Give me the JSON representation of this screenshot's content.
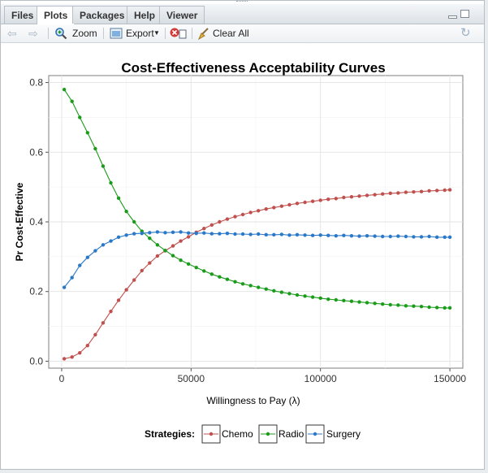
{
  "tabs": [
    "Files",
    "Plots",
    "Packages",
    "Help",
    "Viewer"
  ],
  "active_tab": "Plots",
  "toolbar": {
    "zoom_label": "Zoom",
    "export_label": "Export",
    "clear_all_label": "Clear All"
  },
  "colors": {
    "chemo": "#c0504d",
    "radio": "#1a9c1a",
    "surgery": "#2a78c8",
    "accent": "#2f6db5"
  },
  "chart_data": {
    "type": "line",
    "title": "Cost-Effectiveness Acceptability Curves",
    "xlabel": "Willingness to Pay (λ)",
    "ylabel": "Pr Cost-Effective",
    "xlim": [
      -5000,
      155000
    ],
    "ylim": [
      -0.02,
      0.82
    ],
    "x_ticks": [
      0,
      50000,
      100000,
      150000
    ],
    "x_tick_labels": [
      "0",
      "50000",
      "100000",
      "150000"
    ],
    "y_ticks": [
      0.0,
      0.2,
      0.4,
      0.6,
      0.8
    ],
    "y_tick_labels": [
      "0.0",
      "0.2",
      "0.4",
      "0.6",
      "0.8"
    ],
    "grid": true,
    "legend_title": "Strategies:",
    "legend_position": "bottom",
    "x": [
      1000,
      4000,
      7000,
      10000,
      13000,
      16000,
      19000,
      22000,
      25000,
      28000,
      31000,
      34000,
      37000,
      40000,
      43000,
      46000,
      49000,
      52000,
      55000,
      58000,
      61000,
      64000,
      67000,
      70000,
      73000,
      76000,
      79000,
      82000,
      85000,
      88000,
      91000,
      94000,
      97000,
      100000,
      103000,
      106000,
      109000,
      112000,
      115000,
      118000,
      121000,
      124000,
      127000,
      130000,
      133000,
      136000,
      139000,
      142000,
      145000,
      148000,
      150000
    ],
    "series": [
      {
        "name": "Chemo",
        "values": [
          0.007,
          0.012,
          0.024,
          0.045,
          0.076,
          0.11,
          0.143,
          0.175,
          0.205,
          0.233,
          0.26,
          0.282,
          0.302,
          0.317,
          0.331,
          0.345,
          0.357,
          0.37,
          0.381,
          0.391,
          0.4,
          0.408,
          0.415,
          0.421,
          0.427,
          0.432,
          0.437,
          0.441,
          0.445,
          0.449,
          0.453,
          0.456,
          0.459,
          0.462,
          0.465,
          0.467,
          0.47,
          0.472,
          0.474,
          0.476,
          0.478,
          0.48,
          0.482,
          0.483,
          0.485,
          0.486,
          0.487,
          0.489,
          0.49,
          0.491,
          0.492
        ]
      },
      {
        "name": "Radio",
        "values": [
          0.78,
          0.746,
          0.7,
          0.656,
          0.61,
          0.56,
          0.512,
          0.468,
          0.43,
          0.4,
          0.373,
          0.353,
          0.334,
          0.318,
          0.303,
          0.29,
          0.279,
          0.269,
          0.259,
          0.25,
          0.242,
          0.235,
          0.228,
          0.222,
          0.217,
          0.212,
          0.207,
          0.202,
          0.198,
          0.194,
          0.19,
          0.187,
          0.184,
          0.181,
          0.178,
          0.176,
          0.174,
          0.172,
          0.17,
          0.168,
          0.166,
          0.164,
          0.162,
          0.161,
          0.159,
          0.158,
          0.157,
          0.155,
          0.154,
          0.153,
          0.153
        ]
      },
      {
        "name": "Surgery",
        "values": [
          0.212,
          0.24,
          0.275,
          0.298,
          0.317,
          0.334,
          0.345,
          0.356,
          0.362,
          0.366,
          0.367,
          0.369,
          0.371,
          0.369,
          0.37,
          0.371,
          0.368,
          0.367,
          0.368,
          0.366,
          0.366,
          0.367,
          0.365,
          0.365,
          0.364,
          0.365,
          0.363,
          0.363,
          0.364,
          0.362,
          0.363,
          0.362,
          0.361,
          0.362,
          0.361,
          0.36,
          0.361,
          0.36,
          0.359,
          0.36,
          0.359,
          0.358,
          0.358,
          0.359,
          0.358,
          0.357,
          0.357,
          0.358,
          0.356,
          0.356,
          0.356
        ]
      }
    ]
  }
}
